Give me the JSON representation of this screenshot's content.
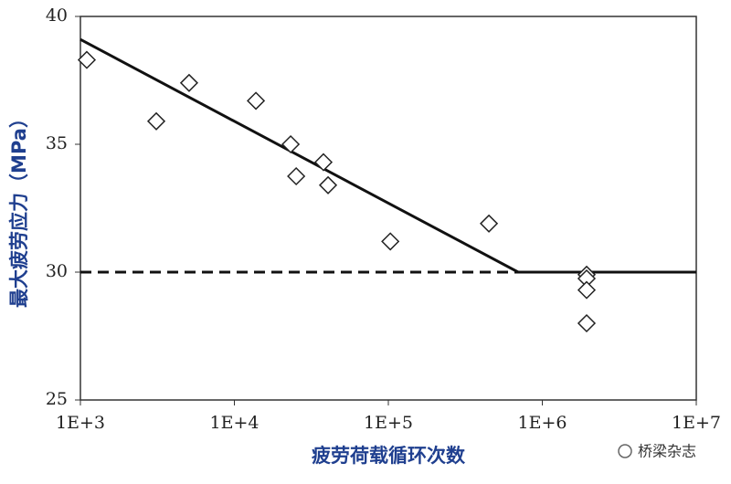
{
  "chart_data": {
    "type": "scatter",
    "xlabel": "疲劳荷载循环次数",
    "ylabel": "最大疲劳应力（MPa）",
    "watermark": "桥梁杂志",
    "x": [
      1100,
      3110,
      5080,
      13800,
      23200,
      25200,
      37900,
      40600,
      103000,
      450000,
      1940000,
      1940000,
      1940000,
      1940000
    ],
    "values": [
      38.3,
      35.9,
      37.4,
      36.7,
      35.0,
      33.75,
      34.3,
      33.4,
      31.2,
      31.9,
      29.9,
      29.75,
      29.3,
      28.0
    ],
    "marker_color": "#222222",
    "lines": [
      {
        "x": [
          1000,
          697000,
          10000000
        ],
        "y": [
          39.1,
          30,
          30
        ],
        "style": "solid",
        "color": "#111111"
      },
      {
        "x": [
          1000,
          697000
        ],
        "y": [
          30,
          30
        ],
        "style": "dashed",
        "color": "#111111"
      }
    ],
    "xscale": "log",
    "xlim": [
      1000,
      10000000
    ],
    "xticks": [
      {
        "value": 1000,
        "label": "1E+3"
      },
      {
        "value": 10000,
        "label": "1E+4"
      },
      {
        "value": 100000,
        "label": "1E+5"
      },
      {
        "value": 1000000,
        "label": "1E+6"
      },
      {
        "value": 10000000,
        "label": "1E+7"
      }
    ],
    "ylim": [
      25,
      40
    ],
    "yticks": [
      25,
      30,
      35,
      40
    ],
    "grid": false
  }
}
